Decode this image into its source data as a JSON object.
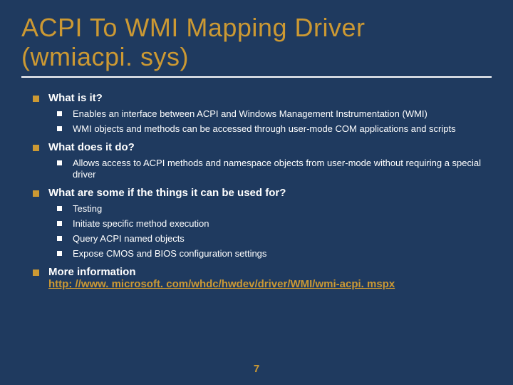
{
  "title_line1": "ACPI To WMI Mapping Driver",
  "title_line2": "(wmiacpi. sys)",
  "sections": {
    "s1": {
      "heading": "What is it?",
      "items": [
        "Enables an interface between ACPI and Windows Management Instrumentation (WMI)",
        "WMI objects and methods can be accessed through user-mode COM applications and scripts"
      ]
    },
    "s2": {
      "heading": "What does it do?",
      "items": [
        "Allows access to ACPI methods and namespace objects from user-mode without requiring a special driver"
      ]
    },
    "s3": {
      "heading": "What are some if the things it can be used for?",
      "items": [
        "Testing",
        "Initiate specific method execution",
        "Query ACPI named objects",
        "Expose CMOS and BIOS configuration settings"
      ]
    },
    "s4": {
      "heading": "More information",
      "link": "http: //www. microsoft. com/whdc/hwdev/driver/WMI/wmi-acpi. mspx"
    }
  },
  "page_number": "7",
  "colors": {
    "background": "#1f3a5f",
    "accent": "#cc9933",
    "text": "#ffffff"
  }
}
